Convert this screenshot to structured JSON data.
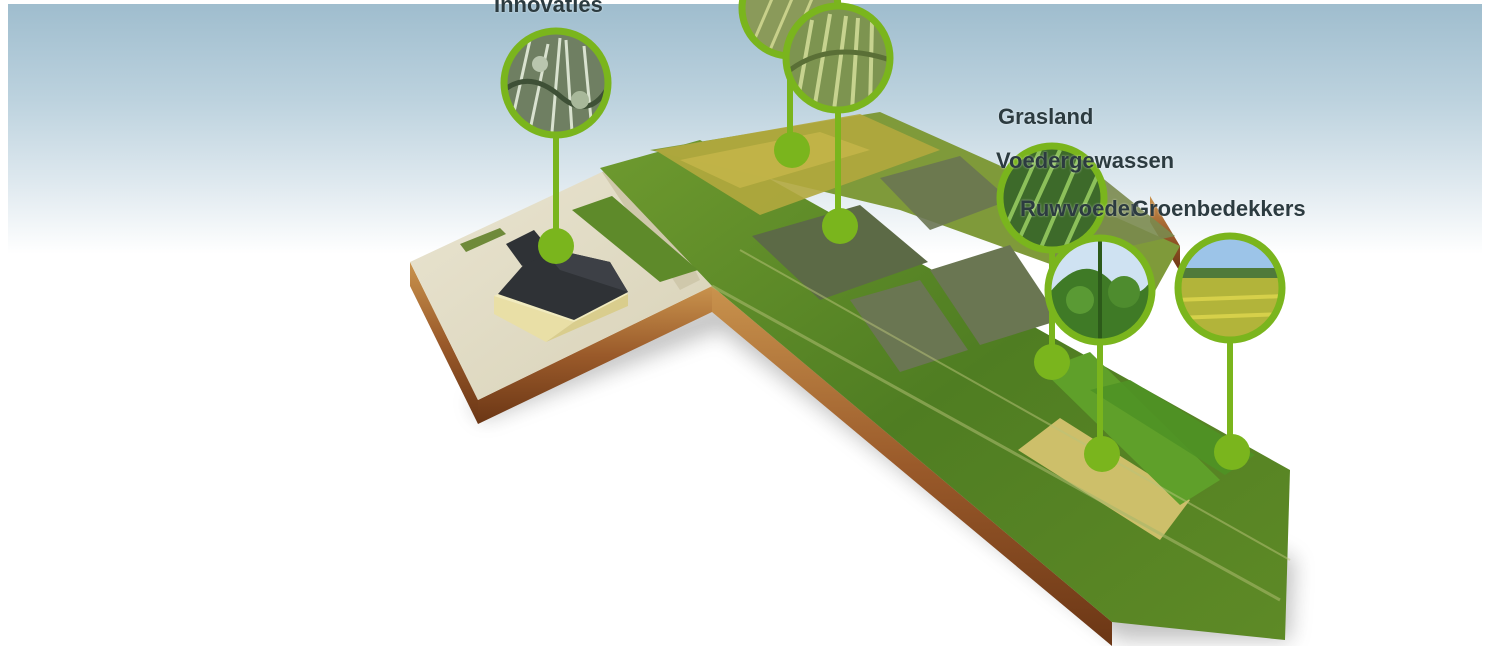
{
  "labels": {
    "innovaties": "Innovaties",
    "grasland": "Grasland",
    "voedergewassen": "Voedergewassen",
    "ruwvoeder": "Ruwvoeder",
    "groenbedekkers": "Groenbedekkers"
  },
  "colors": {
    "marker_green": "#7ab51d",
    "field_green": "#4f7d22",
    "soil_brown": "#9a5a2a",
    "label_text": "#2c3b40"
  },
  "icons": {
    "marker": "location-pin-circle-icon"
  }
}
